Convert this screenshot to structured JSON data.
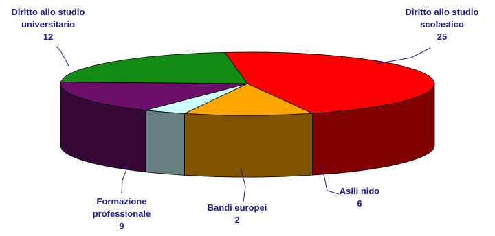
{
  "chart_data": {
    "type": "pie",
    "style": "3d-exploded-none",
    "categories": [
      "Diritto allo studio scolastico",
      "Asili nido",
      "Bandi europei",
      "Formazione professionale",
      "Diritto allo studio universitario"
    ],
    "values": [
      25,
      6,
      2,
      9,
      12
    ],
    "colors": [
      "#ff0000",
      "#ffa500",
      "#ccffff",
      "#6b0f6b",
      "#138a13"
    ],
    "labels": [
      {
        "lines": [
          "Diritto allo studio",
          "scolastico"
        ],
        "value": "25"
      },
      {
        "lines": [
          "Asili nido"
        ],
        "value": "6"
      },
      {
        "lines": [
          "Bandi europei"
        ],
        "value": "2"
      },
      {
        "lines": [
          "Formazione",
          "professionale"
        ],
        "value": "9"
      },
      {
        "lines": [
          "Diritto allo studio",
          "universitario"
        ],
        "value": "12"
      }
    ],
    "title": "",
    "legend": "none"
  }
}
